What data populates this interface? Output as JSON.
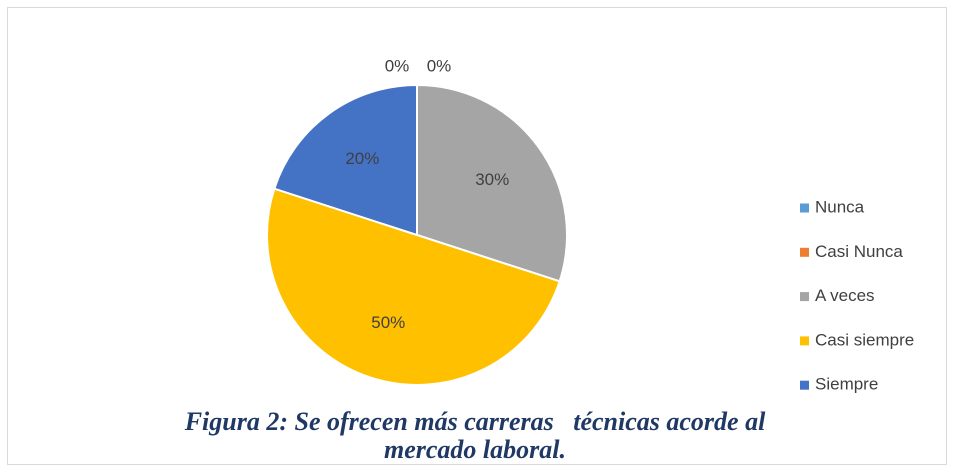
{
  "chart_data": {
    "type": "pie",
    "caption": "Figura 2: Se ofrecen más carreras   técnicas acorde al mercado laboral.",
    "categories": [
      "Nunca",
      "Casi Nunca",
      "A veces",
      "Casi siempre",
      "Siempre"
    ],
    "values": [
      0,
      0,
      30,
      50,
      20
    ],
    "value_labels": [
      "0%",
      "0%",
      "30%",
      "50%",
      "20%"
    ],
    "colors": [
      "#5b9bd5",
      "#ed7d31",
      "#a5a5a5",
      "#ffc000",
      "#4472c4"
    ],
    "legend": "right"
  }
}
